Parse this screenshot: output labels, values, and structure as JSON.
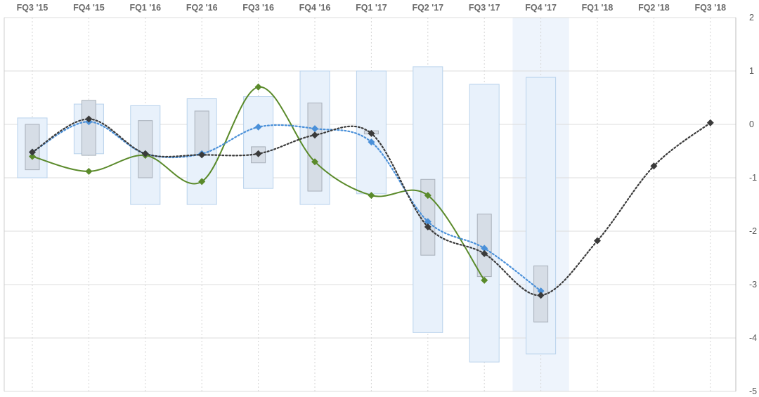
{
  "chart_data": {
    "type": "line",
    "categories": [
      "FQ3 '15",
      "FQ4 '15",
      "FQ1 '16",
      "FQ2 '16",
      "FQ3 '16",
      "FQ4 '16",
      "FQ1 '17",
      "FQ2 '17",
      "FQ3 '17",
      "FQ4 '17",
      "FQ1 '18",
      "FQ2 '18",
      "FQ3 '18"
    ],
    "y_ticks": [
      "2",
      "1",
      "0",
      "-1",
      "-2",
      "-3",
      "-4",
      "-5"
    ],
    "ylim": [
      -5,
      2
    ],
    "grid": true,
    "highlighted_category": "FQ4 '17",
    "range_bars": {
      "low": [
        -1.0,
        -0.55,
        -1.5,
        -1.5,
        -1.2,
        -1.5,
        -1.3,
        -3.9,
        -4.45,
        -4.3,
        null,
        null,
        null
      ],
      "high": [
        0.12,
        0.38,
        0.35,
        0.48,
        0.52,
        1.0,
        1.0,
        1.08,
        0.75,
        0.88,
        null,
        null,
        null
      ]
    },
    "box_bars": {
      "low": [
        -0.85,
        -0.58,
        -1.0,
        -0.58,
        -0.72,
        -1.25,
        -0.18,
        -2.45,
        -2.85,
        -3.7,
        null,
        null,
        null
      ],
      "high": [
        0.0,
        0.45,
        0.07,
        0.25,
        -0.42,
        0.4,
        -0.12,
        -1.03,
        -1.68,
        -2.65,
        null,
        null,
        null
      ]
    },
    "series": [
      {
        "values": [
          -0.6,
          -0.88,
          -0.58,
          -1.07,
          0.7,
          -0.7,
          -1.33,
          -1.33,
          -2.92,
          null,
          null,
          null,
          null
        ],
        "color": "#5a8a2a",
        "style": "solid"
      },
      {
        "values": [
          -0.52,
          0.05,
          -0.55,
          -0.55,
          -0.05,
          -0.08,
          -0.33,
          -1.82,
          -2.32,
          -3.12,
          null,
          null,
          null
        ],
        "color": "#4a90d9",
        "style": "dotted"
      },
      {
        "values": [
          -0.52,
          0.1,
          -0.55,
          -0.57,
          -0.55,
          -0.2,
          -0.17,
          -1.92,
          -2.42,
          -3.2,
          -2.18,
          -0.78,
          0.03
        ],
        "color": "#3a3a3a",
        "style": "dotted"
      }
    ],
    "colors": {
      "range_fill": "#e8f1fb",
      "range_stroke": "#b8d2ec",
      "box_fill": "#d6dde6",
      "box_stroke": "#a8b0ba",
      "highlight": "#eef4fc",
      "grid": "#dcdcdc"
    }
  }
}
